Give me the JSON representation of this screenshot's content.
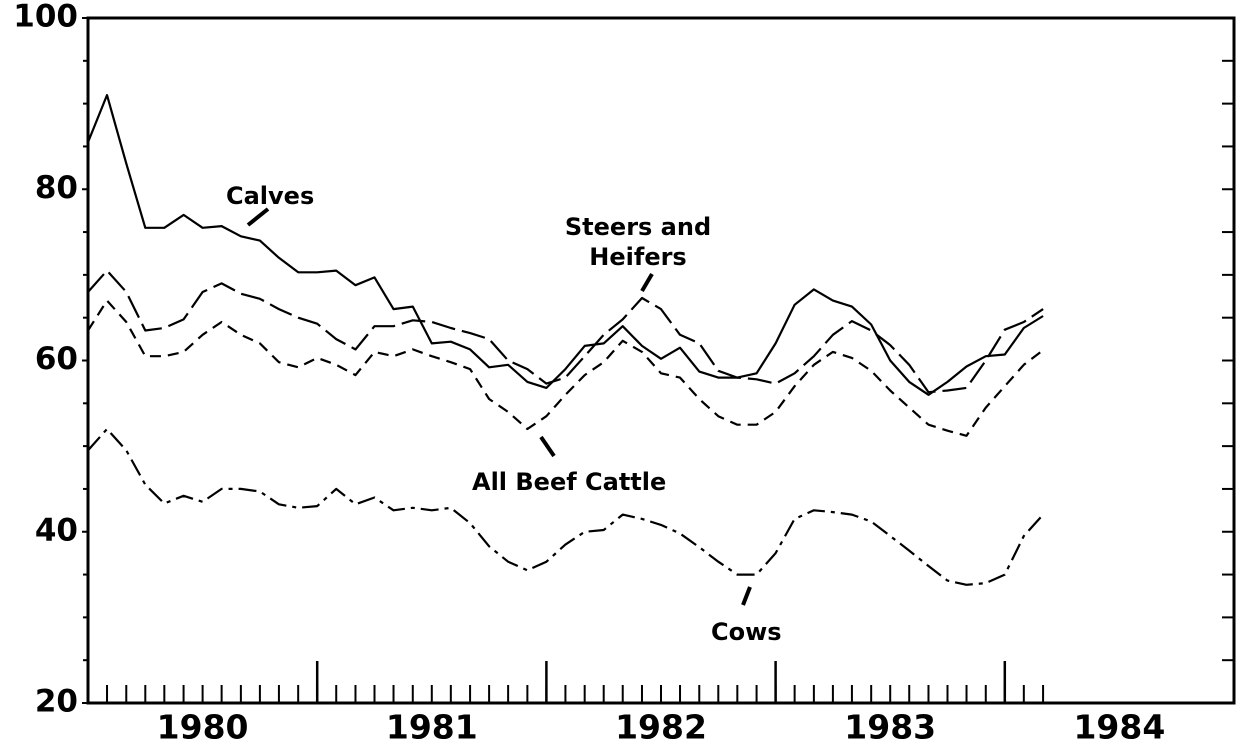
{
  "chart_data": {
    "type": "line",
    "x": [
      1980,
      1980.083,
      1980.167,
      1980.25,
      1980.333,
      1980.417,
      1980.5,
      1980.583,
      1980.667,
      1980.75,
      1980.833,
      1980.917,
      1981,
      1981.083,
      1981.167,
      1981.25,
      1981.333,
      1981.417,
      1981.5,
      1981.583,
      1981.667,
      1981.75,
      1981.833,
      1981.917,
      1982,
      1982.083,
      1982.167,
      1982.25,
      1982.333,
      1982.417,
      1982.5,
      1982.583,
      1982.667,
      1982.75,
      1982.833,
      1982.917,
      1983,
      1983.083,
      1983.167,
      1983.25,
      1983.333,
      1983.417,
      1983.5,
      1983.583,
      1983.667,
      1983.75,
      1983.833,
      1983.917,
      1984,
      1984.083,
      1984.167
    ],
    "series": [
      {
        "name": "Calves",
        "color": "#000000",
        "style": "solid",
        "values": [
          85.5,
          91,
          83,
          75.5,
          75.5,
          77,
          75.5,
          75.7,
          74.5,
          74,
          72,
          70.3,
          70.3,
          70.5,
          68.8,
          69.7,
          66,
          66.3,
          62,
          62.2,
          61.3,
          59.2,
          59.5,
          57.5,
          56.8,
          59,
          61.7,
          62,
          64,
          61.7,
          60.2,
          61.5,
          58.7,
          58,
          58,
          58.5,
          62,
          66.5,
          68.3,
          67,
          66.3,
          64.2,
          60,
          57.5,
          56,
          57.5,
          59.3,
          60.5,
          60.7,
          63.8,
          65.2
        ]
      },
      {
        "name": "Steers and Heifers",
        "color": "#000000",
        "style": "longdash",
        "values": [
          68,
          70.5,
          68,
          63.5,
          63.8,
          64.8,
          68,
          69,
          67.8,
          67.2,
          66,
          65,
          64.3,
          62.5,
          61.3,
          64,
          64,
          64.7,
          64.5,
          63.8,
          63.2,
          62.5,
          60,
          59,
          57.3,
          58,
          60.5,
          63,
          64.8,
          67.3,
          66,
          63,
          62,
          58.8,
          58,
          57.8,
          57.3,
          58.5,
          60.5,
          63,
          64.6,
          63.5,
          61.8,
          59.5,
          56.3,
          56.5,
          56.8,
          60,
          63.6,
          64.5,
          66
        ]
      },
      {
        "name": "All Beef Cattle",
        "color": "#000000",
        "style": "dash",
        "values": [
          63.5,
          67,
          64.5,
          60.5,
          60.5,
          61,
          63,
          64.5,
          63,
          62,
          59.8,
          59.2,
          60.3,
          59.5,
          58.3,
          61,
          60.5,
          61.3,
          60.5,
          59.8,
          59,
          55.5,
          54,
          52,
          53.5,
          56,
          58.3,
          59.8,
          62.3,
          61,
          58.5,
          58,
          55.5,
          53.5,
          52.5,
          52.5,
          54,
          57,
          59.5,
          61,
          60.3,
          58.8,
          56.5,
          54.5,
          52.5,
          51.8,
          51.2,
          54.5,
          57,
          59.5,
          61.2
        ]
      },
      {
        "name": "Cows",
        "color": "#000000",
        "style": "dashdot",
        "values": [
          49.5,
          52,
          49.5,
          45.5,
          43.3,
          44.2,
          43.5,
          45,
          45,
          44.7,
          43.2,
          42.8,
          43,
          45,
          43.2,
          44,
          42.5,
          42.8,
          42.5,
          42.8,
          41,
          38.3,
          36.5,
          35.5,
          36.5,
          38.5,
          40,
          40.2,
          42,
          41.5,
          40.8,
          39.8,
          38.2,
          36.5,
          35,
          35,
          37.5,
          41.5,
          42.5,
          42.3,
          42,
          41.2,
          39.5,
          37.8,
          36,
          34.3,
          33.8,
          34,
          35,
          39.5,
          42
        ]
      }
    ],
    "xlim": [
      1980,
      1985
    ],
    "xticks": [
      {
        "value": 1980.5,
        "label": "1980"
      },
      {
        "value": 1981.5,
        "label": "1981"
      },
      {
        "value": 1982.5,
        "label": "1982"
      },
      {
        "value": 1983.5,
        "label": "1983"
      },
      {
        "value": 1984.5,
        "label": "1984"
      }
    ],
    "xmajor_ticks": [
      1981,
      1982,
      1983,
      1984
    ],
    "ylim": [
      20,
      100
    ],
    "yticks": [
      20,
      40,
      60,
      80,
      100
    ],
    "yminor_ticks": [
      25,
      30,
      35,
      45,
      50,
      55,
      65,
      70,
      75,
      85,
      90,
      95
    ],
    "grid": false
  }
}
